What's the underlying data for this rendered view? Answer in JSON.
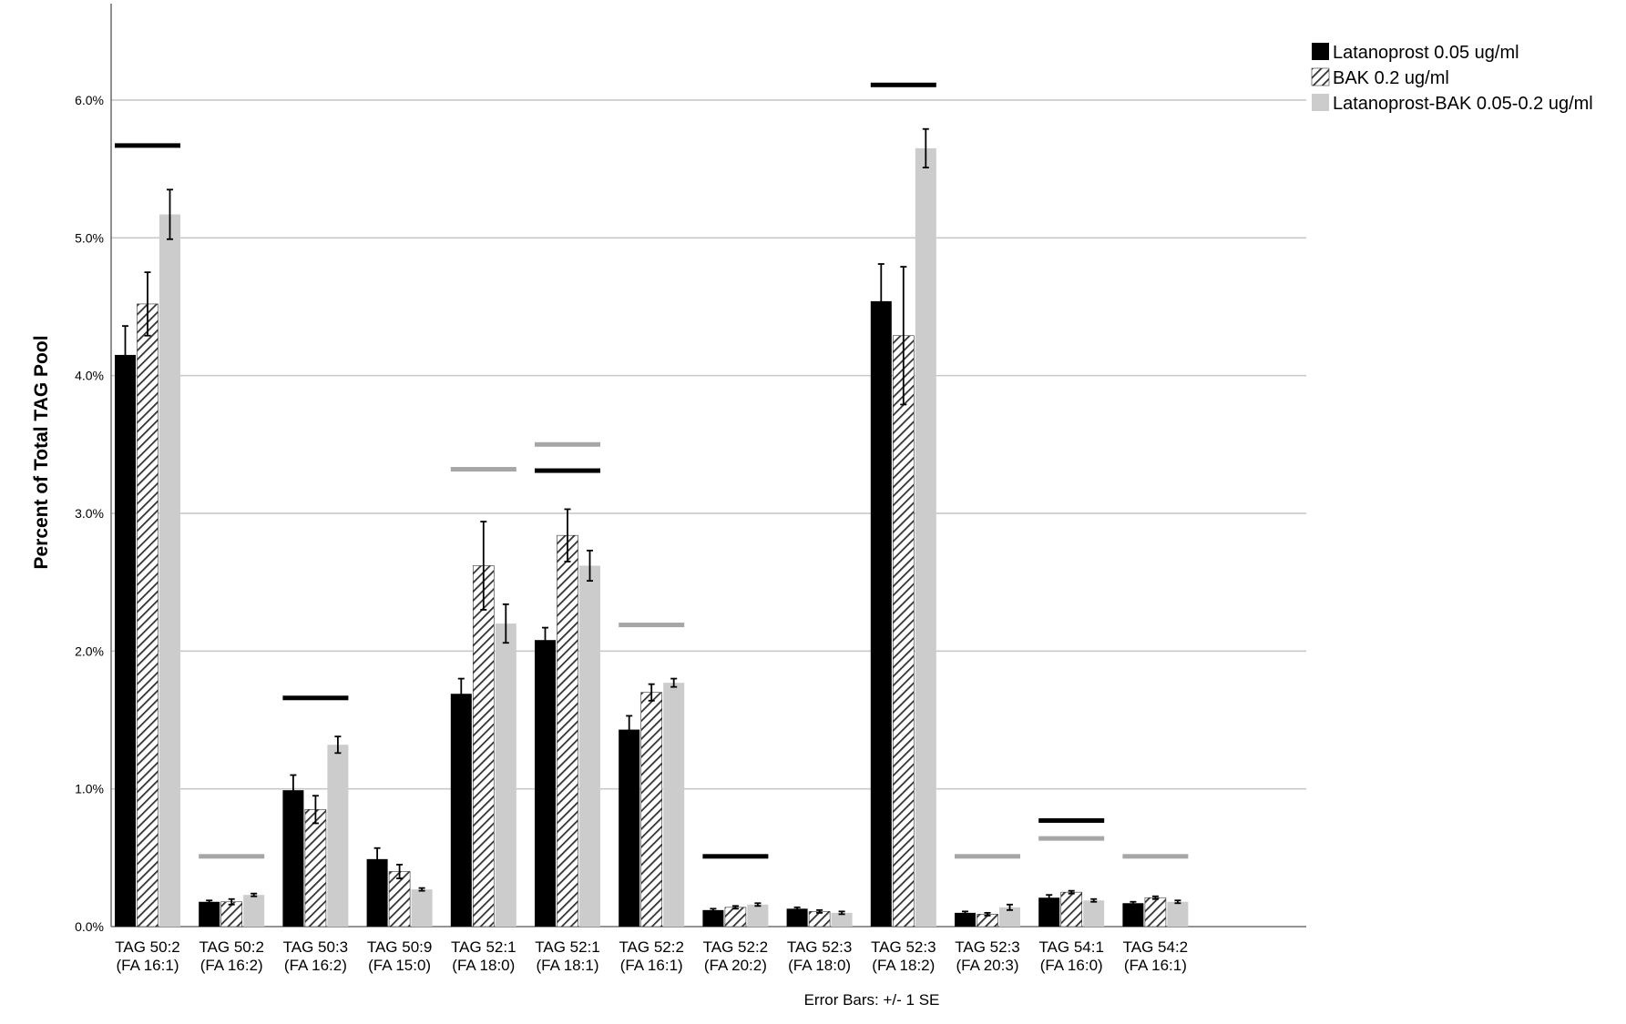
{
  "chart_data": {
    "type": "bar",
    "ylabel": "Percent of Total TAG Pool",
    "ylim": [
      0,
      6.7
    ],
    "yticks": [
      "0.0%",
      "1.0%",
      "2.0%",
      "3.0%",
      "4.0%",
      "5.0%",
      "6.0%"
    ],
    "grid": true,
    "legend_position": "top-right",
    "footnote": "Error Bars: +/- 1 SE",
    "categories": [
      [
        "TAG 50:2",
        "(FA 16:1)"
      ],
      [
        "TAG 50:2",
        "(FA 16:2)"
      ],
      [
        "TAG 50:3",
        "(FA 16:2)"
      ],
      [
        "TAG 50:9",
        "(FA 15:0)"
      ],
      [
        "TAG 52:1",
        "(FA 18:0)"
      ],
      [
        "TAG 52:1",
        "(FA 18:1)"
      ],
      [
        "TAG 52:2",
        "(FA 16:1)"
      ],
      [
        "TAG 52:2",
        "(FA 20:2)"
      ],
      [
        "TAG 52:3",
        "(FA 18:0)"
      ],
      [
        "TAG 52:3",
        "(FA 18:2)"
      ],
      [
        "TAG 52:3",
        "(FA 20:3)"
      ],
      [
        "TAG 54:1",
        "(FA 16:0)"
      ],
      [
        "TAG 54:2",
        "(FA 16:1)"
      ]
    ],
    "series": [
      {
        "name": "Latanoprost 0.05 ug/ml",
        "pattern": "solid",
        "color": "#000000",
        "values": [
          4.15,
          0.18,
          0.99,
          0.49,
          1.69,
          2.08,
          1.43,
          0.12,
          0.13,
          4.54,
          0.1,
          0.21,
          0.17
        ],
        "se": [
          0.21,
          0.01,
          0.11,
          0.08,
          0.11,
          0.09,
          0.1,
          0.01,
          0.01,
          0.27,
          0.01,
          0.02,
          0.01
        ]
      },
      {
        "name": "BAK 0.2 ug/ml",
        "pattern": "hatched",
        "color": "#4a4a4a",
        "values": [
          4.52,
          0.18,
          0.85,
          0.4,
          2.62,
          2.84,
          1.7,
          0.14,
          0.11,
          4.29,
          0.09,
          0.25,
          0.21
        ],
        "se": [
          0.23,
          0.02,
          0.1,
          0.05,
          0.32,
          0.19,
          0.06,
          0.01,
          0.01,
          0.5,
          0.01,
          0.01,
          0.01
        ]
      },
      {
        "name": "Latanoprost-BAK 0.05-0.2 ug/ml",
        "pattern": "solid",
        "color": "#cccccc",
        "values": [
          5.17,
          0.23,
          1.32,
          0.27,
          2.2,
          2.62,
          1.77,
          0.16,
          0.1,
          5.65,
          0.14,
          0.19,
          0.18
        ],
        "se": [
          0.18,
          0.01,
          0.06,
          0.01,
          0.14,
          0.11,
          0.03,
          0.01,
          0.01,
          0.14,
          0.02,
          0.01,
          0.01
        ]
      }
    ],
    "significance_bars": [
      {
        "category": 0,
        "value": 5.67,
        "color": "#000000"
      },
      {
        "category": 1,
        "value": 0.51,
        "color": "#a6a6a6"
      },
      {
        "category": 2,
        "value": 1.66,
        "color": "#000000"
      },
      {
        "category": 4,
        "value": 3.32,
        "color": "#a6a6a6"
      },
      {
        "category": 5,
        "value": 3.31,
        "color": "#000000"
      },
      {
        "category": 5,
        "value": 3.5,
        "color": "#a6a6a6"
      },
      {
        "category": 6,
        "value": 2.19,
        "color": "#a6a6a6"
      },
      {
        "category": 7,
        "value": 0.51,
        "color": "#000000"
      },
      {
        "category": 9,
        "value": 6.11,
        "color": "#000000"
      },
      {
        "category": 10,
        "value": 0.51,
        "color": "#a6a6a6"
      },
      {
        "category": 11,
        "value": 0.64,
        "color": "#a6a6a6"
      },
      {
        "category": 11,
        "value": 0.77,
        "color": "#000000"
      },
      {
        "category": 12,
        "value": 0.51,
        "color": "#a6a6a6"
      }
    ]
  }
}
